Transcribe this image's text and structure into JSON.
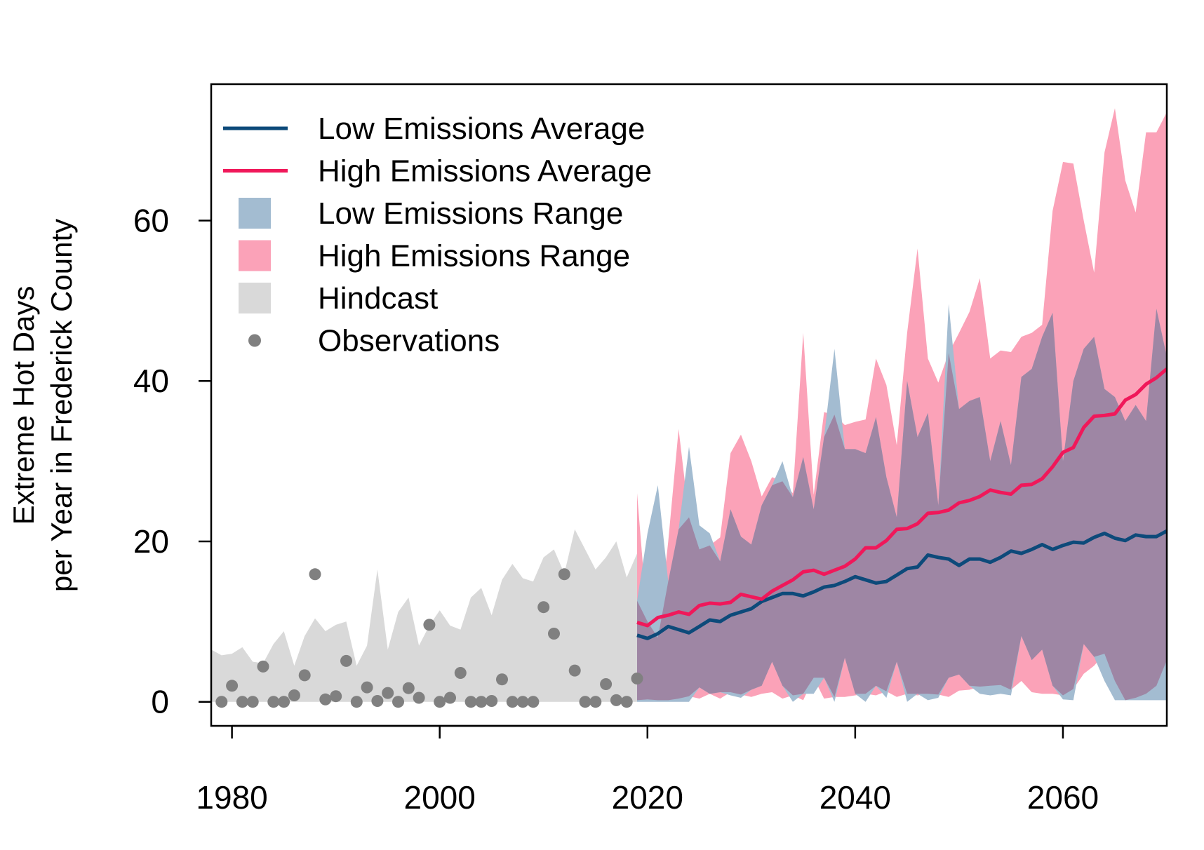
{
  "chart_data": {
    "type": "area",
    "title": "",
    "xlabel": "",
    "ylabel_lines": [
      "Extreme Hot Days",
      "per Year in Frederick County"
    ],
    "xlim": [
      1978,
      2070
    ],
    "ylim": [
      -3,
      77
    ],
    "x_ticks": [
      1980,
      2000,
      2020,
      2040,
      2060
    ],
    "y_ticks": [
      0,
      20,
      40,
      60
    ],
    "grid": false,
    "legend_position": "top-left",
    "colors": {
      "low_avg": "#0d4a7a",
      "high_avg": "#f0185a",
      "low_range": "#a3bcd1",
      "high_range": "#fba2b8",
      "overlap": "#9e86a4",
      "hindcast": "#d9d9d9",
      "observations": "#808080"
    },
    "legend": [
      {
        "label": "Low Emissions Average",
        "kind": "line",
        "color_key": "low_avg"
      },
      {
        "label": "High Emissions Average",
        "kind": "line",
        "color_key": "high_avg"
      },
      {
        "label": "Low Emissions Range",
        "kind": "box",
        "color_key": "low_range"
      },
      {
        "label": "High Emissions Range",
        "kind": "box",
        "color_key": "high_range"
      },
      {
        "label": "Hindcast",
        "kind": "box",
        "color_key": "hindcast"
      },
      {
        "label": "Observations",
        "kind": "point",
        "color_key": "observations"
      }
    ],
    "hindcast": {
      "years": [
        1978,
        1979,
        1980,
        1981,
        1982,
        1983,
        1984,
        1985,
        1986,
        1987,
        1988,
        1989,
        1990,
        1991,
        1992,
        1993,
        1994,
        1995,
        1996,
        1997,
        1998,
        1999,
        2000,
        2001,
        2002,
        2003,
        2004,
        2005,
        2006,
        2007,
        2008,
        2009,
        2010,
        2011,
        2012,
        2013,
        2014,
        2015,
        2016,
        2017,
        2018,
        2019
      ],
      "lower": [
        0,
        0,
        0,
        0,
        0,
        0,
        0,
        0,
        0,
        0,
        0,
        0,
        0,
        0,
        0,
        0,
        0,
        0,
        0,
        0,
        0,
        0,
        0,
        0,
        0,
        0,
        0,
        0,
        0,
        0,
        0,
        0,
        0,
        0,
        0,
        0,
        0,
        0,
        0,
        0,
        0,
        0
      ],
      "upper": [
        6.5,
        5.8,
        6,
        6.8,
        5,
        4.8,
        7.2,
        8.8,
        4.5,
        8.2,
        10.4,
        8.8,
        9.6,
        10,
        4.5,
        7,
        16.5,
        6.5,
        11.2,
        13,
        7,
        9.5,
        11.4,
        9.5,
        9,
        13,
        14.2,
        10.8,
        15.2,
        17.2,
        15.4,
        15,
        18,
        19,
        16,
        21.5,
        19,
        16.5,
        18,
        20,
        15.5,
        18.5
      ]
    },
    "observations": {
      "years": [
        1979,
        1980,
        1981,
        1982,
        1983,
        1984,
        1985,
        1986,
        1987,
        1988,
        1989,
        1990,
        1991,
        1992,
        1993,
        1994,
        1995,
        1996,
        1997,
        1998,
        1999,
        2000,
        2001,
        2002,
        2003,
        2004,
        2005,
        2006,
        2007,
        2008,
        2009,
        2010,
        2011,
        2012,
        2013,
        2014,
        2015,
        2016,
        2017,
        2018,
        2019
      ],
      "values": [
        0,
        2,
        0,
        0,
        4.4,
        0,
        0,
        0.8,
        3.3,
        15.9,
        0.3,
        0.7,
        5.1,
        0,
        1.8,
        0.1,
        1.1,
        0,
        1.7,
        0.5,
        9.6,
        0,
        0.5,
        3.6,
        0,
        0,
        0.1,
        2.8,
        0,
        0,
        0,
        11.8,
        8.5,
        15.9,
        3.9,
        0,
        0,
        2.2,
        0.2,
        0,
        2.9
      ]
    },
    "projection_years": [
      2019,
      2020,
      2021,
      2022,
      2023,
      2024,
      2025,
      2026,
      2027,
      2028,
      2029,
      2030,
      2031,
      2032,
      2033,
      2034,
      2035,
      2036,
      2037,
      2038,
      2039,
      2040,
      2041,
      2042,
      2043,
      2044,
      2045,
      2046,
      2047,
      2048,
      2049,
      2050,
      2051,
      2052,
      2053,
      2054,
      2055,
      2056,
      2057,
      2058,
      2059,
      2060,
      2061,
      2062,
      2063,
      2064,
      2065,
      2066,
      2067,
      2068,
      2069,
      2070
    ],
    "series": [
      {
        "name": "Low Emissions Average",
        "values": [
          8.3,
          7.9,
          8.5,
          9.4,
          9,
          8.6,
          9.4,
          10.2,
          10,
          10.8,
          11.2,
          11.6,
          12.5,
          13,
          13.5,
          13.5,
          13.2,
          13.7,
          14.3,
          14.5,
          15,
          15.6,
          15.2,
          14.8,
          15,
          15.8,
          16.6,
          16.8,
          18.3,
          18,
          17.8,
          17,
          17.8,
          17.8,
          17.4,
          18,
          18.8,
          18.5,
          19,
          19.6,
          19,
          19.5,
          19.9,
          19.8,
          20.5,
          21,
          20.4,
          20.1,
          20.8,
          20.6,
          20.6,
          21.3
        ]
      },
      {
        "name": "High Emissions Average",
        "values": [
          9.9,
          9.5,
          10.5,
          10.8,
          11.2,
          10.9,
          12,
          12.3,
          12.2,
          12.4,
          13.4,
          13.1,
          12.8,
          13.8,
          14.5,
          15.2,
          16.2,
          16.4,
          15.9,
          16.4,
          16.9,
          17.8,
          19.2,
          19.2,
          20.1,
          21.5,
          21.6,
          22.2,
          23.5,
          23.6,
          23.9,
          24.8,
          25.1,
          25.6,
          26.4,
          26.1,
          25.9,
          27,
          27.1,
          27.8,
          29.3,
          31.1,
          31.7,
          34.2,
          35.6,
          35.7,
          35.9,
          37.6,
          38.3,
          39.6,
          40.4,
          41.5
        ]
      }
    ],
    "low_range": {
      "lower": [
        0,
        0,
        0,
        0,
        0,
        0,
        1.8,
        1,
        1.2,
        0.8,
        0.5,
        1.5,
        2,
        5,
        2,
        0,
        1,
        1,
        3,
        0,
        5.5,
        1,
        0,
        2,
        0.5,
        5,
        0,
        1,
        0.2,
        0.5,
        3,
        3.4,
        2,
        1,
        0.8,
        1,
        0.8,
        8.2,
        5.2,
        6.5,
        2,
        0.3,
        0.2,
        7.2,
        5.6,
        2.6,
        0.2,
        0.2,
        0.2,
        0.2,
        0.2,
        0.2
      ],
      "upper": [
        12.6,
        21,
        27,
        15,
        21.5,
        31.8,
        22,
        21,
        17.5,
        24,
        20.6,
        19.6,
        24.5,
        27,
        30,
        25.5,
        30.5,
        24,
        33,
        44,
        31.5,
        31.5,
        31,
        35.5,
        28,
        23,
        40,
        33,
        36,
        24.5,
        49.6,
        36.5,
        37.5,
        38,
        30,
        35,
        29.5,
        40.5,
        41.5,
        45.5,
        48.5,
        30,
        40,
        44,
        45.5,
        39,
        38,
        35,
        37,
        35,
        49,
        43
      ]
    },
    "high_range": {
      "lower": [
        0.2,
        0.3,
        0.2,
        0.2,
        0.4,
        0.7,
        0.4,
        1,
        0.4,
        1.2,
        0.9,
        0.6,
        1,
        1.2,
        0.4,
        0.8,
        0.2,
        3,
        0.4,
        0.6,
        0.6,
        0.8,
        1,
        0.8,
        1.3,
        0.6,
        1,
        0.8,
        1,
        0.9,
        0.6,
        1.4,
        1.5,
        1.9,
        2,
        2.1,
        1.5,
        2.6,
        1.2,
        1,
        1,
        0.8,
        1.6,
        3.5,
        4.5,
        6,
        2.6,
        0.2,
        0.5,
        1,
        2,
        5.2
      ],
      "upper": [
        26,
        10,
        8,
        20,
        34,
        23,
        19,
        19.5,
        20.5,
        31,
        33.3,
        30,
        25.6,
        28,
        27.5,
        26,
        46,
        25.8,
        36.1,
        35.8,
        34.5,
        34.9,
        35.2,
        42.8,
        39.5,
        32,
        46,
        56.5,
        42.8,
        39.8,
        43.5,
        46,
        48.6,
        52.8,
        42.8,
        43.8,
        43.6,
        45.5,
        46,
        47,
        61.2,
        67.3,
        67.1,
        60,
        53.5,
        68.5,
        74,
        65,
        61,
        71,
        71,
        73.5
      ]
    }
  }
}
